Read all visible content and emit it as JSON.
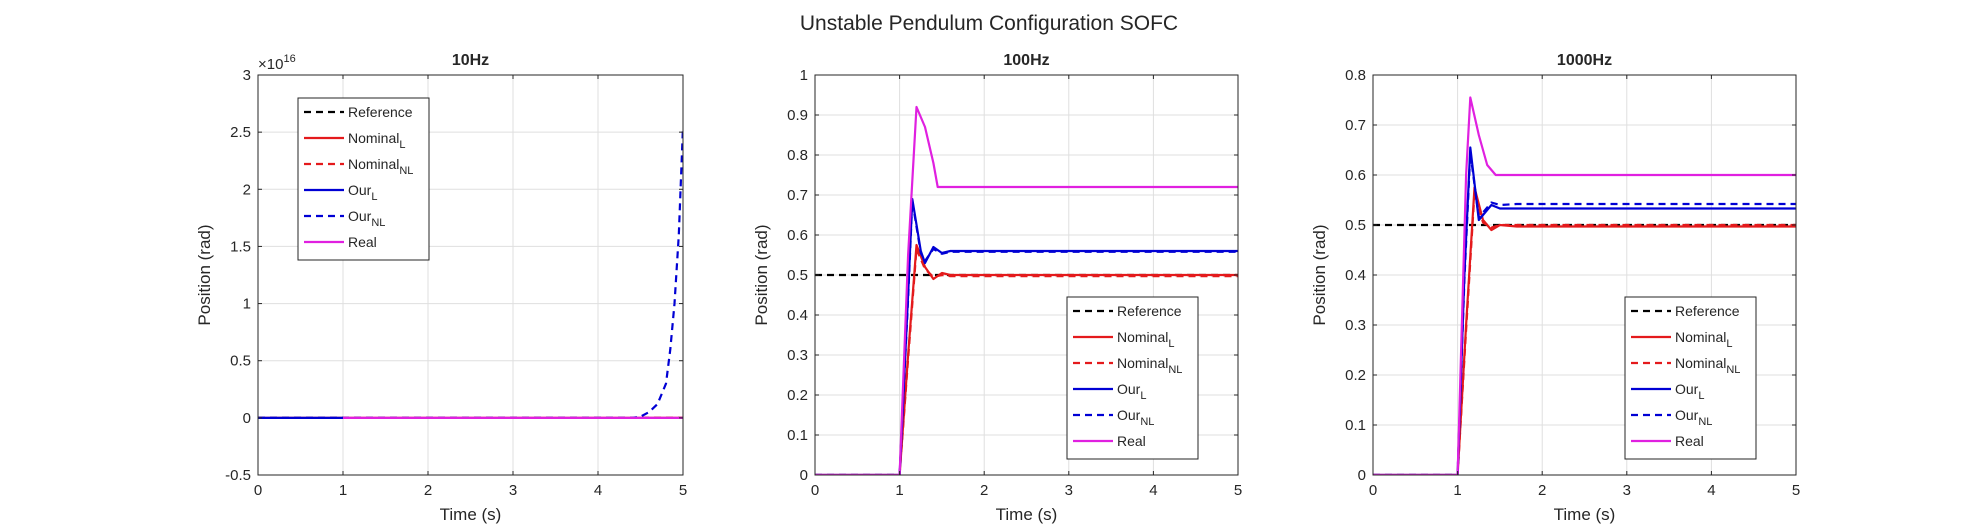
{
  "figure": {
    "title": "Unstable Pendulum Configuration SOFC"
  },
  "legend_entries": [
    {
      "label": "Reference",
      "sub": "",
      "color": "#000000",
      "dash": true
    },
    {
      "label": "Nominal",
      "sub": "L",
      "color": "#e41a1c",
      "dash": false
    },
    {
      "label": "Nominal",
      "sub": "NL",
      "color": "#e41a1c",
      "dash": true
    },
    {
      "label": "Our",
      "sub": "L",
      "color": "#0000d4",
      "dash": false
    },
    {
      "label": "Our",
      "sub": "NL",
      "color": "#0000d4",
      "dash": true
    },
    {
      "label": "Real",
      "sub": "",
      "color": "#e020e0",
      "dash": false
    }
  ],
  "chart_data": [
    {
      "type": "line",
      "title": "10Hz",
      "xlabel": "Time (s)",
      "ylabel": "Position (rad)",
      "exponent_label": "×10",
      "exponent_power": "16",
      "xlim": [
        0,
        5
      ],
      "ylim": [
        -0.5,
        3
      ],
      "xticks": [
        "0",
        "1",
        "2",
        "3",
        "4",
        "5"
      ],
      "yticks": [
        "-0.5",
        "0",
        "0.5",
        "1",
        "1.5",
        "2",
        "2.5",
        "3"
      ],
      "ytick_values": [
        -0.5,
        0,
        0.5,
        1,
        1.5,
        2,
        2.5,
        3
      ],
      "grid": true,
      "legend_location": "top-left",
      "series": [
        {
          "name": "Reference",
          "color": "#000000",
          "dash": true,
          "x": [
            0,
            5
          ],
          "y": [
            0,
            0
          ]
        },
        {
          "name": "Nominal_L",
          "color": "#e41a1c",
          "dash": false,
          "x": [
            0,
            5
          ],
          "y": [
            0,
            0
          ]
        },
        {
          "name": "Nominal_NL",
          "color": "#e41a1c",
          "dash": true,
          "x": [
            0,
            5
          ],
          "y": [
            0,
            0
          ]
        },
        {
          "name": "Our_L",
          "color": "#0000d4",
          "dash": false,
          "x": [
            0,
            1
          ],
          "y": [
            0,
            0
          ]
        },
        {
          "name": "Our_NL",
          "color": "#0000d4",
          "dash": true,
          "x": [
            0,
            4.4,
            4.5,
            4.6,
            4.7,
            4.8,
            4.85,
            4.9,
            4.95,
            5.0
          ],
          "y": [
            0,
            0,
            0.01,
            0.05,
            0.12,
            0.3,
            0.6,
            1.0,
            1.6,
            2.55
          ]
        },
        {
          "name": "Real",
          "color": "#e020e0",
          "dash": false,
          "x": [
            1,
            5
          ],
          "y": [
            0,
            0
          ]
        }
      ]
    },
    {
      "type": "line",
      "title": "100Hz",
      "xlabel": "Time (s)",
      "ylabel": "Position (rad)",
      "exponent_label": "",
      "exponent_power": "",
      "xlim": [
        0,
        5
      ],
      "ylim": [
        0,
        1
      ],
      "xticks": [
        "0",
        "1",
        "2",
        "3",
        "4",
        "5"
      ],
      "yticks": [
        "0",
        "0.1",
        "0.2",
        "0.3",
        "0.4",
        "0.5",
        "0.6",
        "0.7",
        "0.8",
        "0.9",
        "1"
      ],
      "ytick_values": [
        0,
        0.1,
        0.2,
        0.3,
        0.4,
        0.5,
        0.6,
        0.7,
        0.8,
        0.9,
        1
      ],
      "grid": true,
      "legend_location": "bottom-right",
      "series": [
        {
          "name": "Reference",
          "color": "#000000",
          "dash": true,
          "x": [
            0,
            5
          ],
          "y": [
            0.5,
            0.5
          ]
        },
        {
          "name": "Nominal_L",
          "color": "#e41a1c",
          "dash": false,
          "x": [
            0,
            1.0,
            1.1,
            1.2,
            1.3,
            1.4,
            1.5,
            1.6,
            1.8,
            5
          ],
          "y": [
            0,
            0,
            0.3,
            0.575,
            0.52,
            0.49,
            0.505,
            0.5,
            0.5,
            0.5
          ]
        },
        {
          "name": "Nominal_NL",
          "color": "#e41a1c",
          "dash": true,
          "x": [
            0,
            1.0,
            1.1,
            1.2,
            1.3,
            1.4,
            1.5,
            1.6,
            1.8,
            5
          ],
          "y": [
            0,
            0,
            0.29,
            0.565,
            0.515,
            0.495,
            0.5,
            0.497,
            0.497,
            0.497
          ]
        },
        {
          "name": "Our_L",
          "color": "#0000d4",
          "dash": false,
          "x": [
            0,
            1.0,
            1.1,
            1.15,
            1.25,
            1.3,
            1.4,
            1.5,
            1.6,
            1.8,
            5
          ],
          "y": [
            0,
            0,
            0.45,
            0.69,
            0.56,
            0.53,
            0.57,
            0.555,
            0.56,
            0.56,
            0.56
          ]
        },
        {
          "name": "Our_NL",
          "color": "#0000d4",
          "dash": true,
          "x": [
            0,
            1.0,
            1.1,
            1.15,
            1.25,
            1.3,
            1.4,
            1.5,
            1.6,
            1.8,
            5
          ],
          "y": [
            0,
            0,
            0.44,
            0.685,
            0.555,
            0.535,
            0.565,
            0.553,
            0.558,
            0.558,
            0.558
          ]
        },
        {
          "name": "Real",
          "color": "#e020e0",
          "dash": false,
          "x": [
            0,
            1.0,
            1.1,
            1.2,
            1.3,
            1.4,
            1.45,
            5
          ],
          "y": [
            0,
            0,
            0.55,
            0.92,
            0.87,
            0.78,
            0.72,
            0.72
          ]
        }
      ]
    },
    {
      "type": "line",
      "title": "1000Hz",
      "xlabel": "Time (s)",
      "ylabel": "Position (rad)",
      "exponent_label": "",
      "exponent_power": "",
      "xlim": [
        0,
        5
      ],
      "ylim": [
        0,
        0.8
      ],
      "xticks": [
        "0",
        "1",
        "2",
        "3",
        "4",
        "5"
      ],
      "yticks": [
        "0",
        "0.1",
        "0.2",
        "0.3",
        "0.4",
        "0.5",
        "0.6",
        "0.7",
        "0.8"
      ],
      "ytick_values": [
        0,
        0.1,
        0.2,
        0.3,
        0.4,
        0.5,
        0.6,
        0.7,
        0.8
      ],
      "grid": true,
      "legend_location": "bottom-right",
      "series": [
        {
          "name": "Reference",
          "color": "#000000",
          "dash": true,
          "x": [
            0,
            5
          ],
          "y": [
            0.5,
            0.5
          ]
        },
        {
          "name": "Nominal_L",
          "color": "#e41a1c",
          "dash": false,
          "x": [
            0,
            1.0,
            1.1,
            1.2,
            1.3,
            1.4,
            1.5,
            1.7,
            5
          ],
          "y": [
            0,
            0,
            0.3,
            0.575,
            0.51,
            0.49,
            0.5,
            0.497,
            0.497
          ]
        },
        {
          "name": "Nominal_NL",
          "color": "#e41a1c",
          "dash": true,
          "x": [
            0,
            1.0,
            1.1,
            1.2,
            1.3,
            1.4,
            1.5,
            1.7,
            5
          ],
          "y": [
            0,
            0,
            0.29,
            0.565,
            0.505,
            0.495,
            0.5,
            0.5,
            0.5
          ]
        },
        {
          "name": "Our_L",
          "color": "#0000d4",
          "dash": false,
          "x": [
            0,
            1.0,
            1.08,
            1.15,
            1.25,
            1.3,
            1.4,
            1.5,
            1.7,
            5
          ],
          "y": [
            0,
            0,
            0.4,
            0.655,
            0.51,
            0.52,
            0.54,
            0.533,
            0.533,
            0.533
          ]
        },
        {
          "name": "Our_NL",
          "color": "#0000d4",
          "dash": true,
          "x": [
            0,
            1.0,
            1.08,
            1.15,
            1.25,
            1.3,
            1.4,
            1.5,
            1.7,
            5
          ],
          "y": [
            0,
            0,
            0.39,
            0.645,
            0.515,
            0.525,
            0.545,
            0.54,
            0.542,
            0.542
          ]
        },
        {
          "name": "Real",
          "color": "#e020e0",
          "dash": false,
          "x": [
            0,
            1.0,
            1.1,
            1.15,
            1.25,
            1.35,
            1.45,
            5
          ],
          "y": [
            0,
            0,
            0.6,
            0.755,
            0.68,
            0.62,
            0.6,
            0.6
          ]
        }
      ]
    }
  ]
}
